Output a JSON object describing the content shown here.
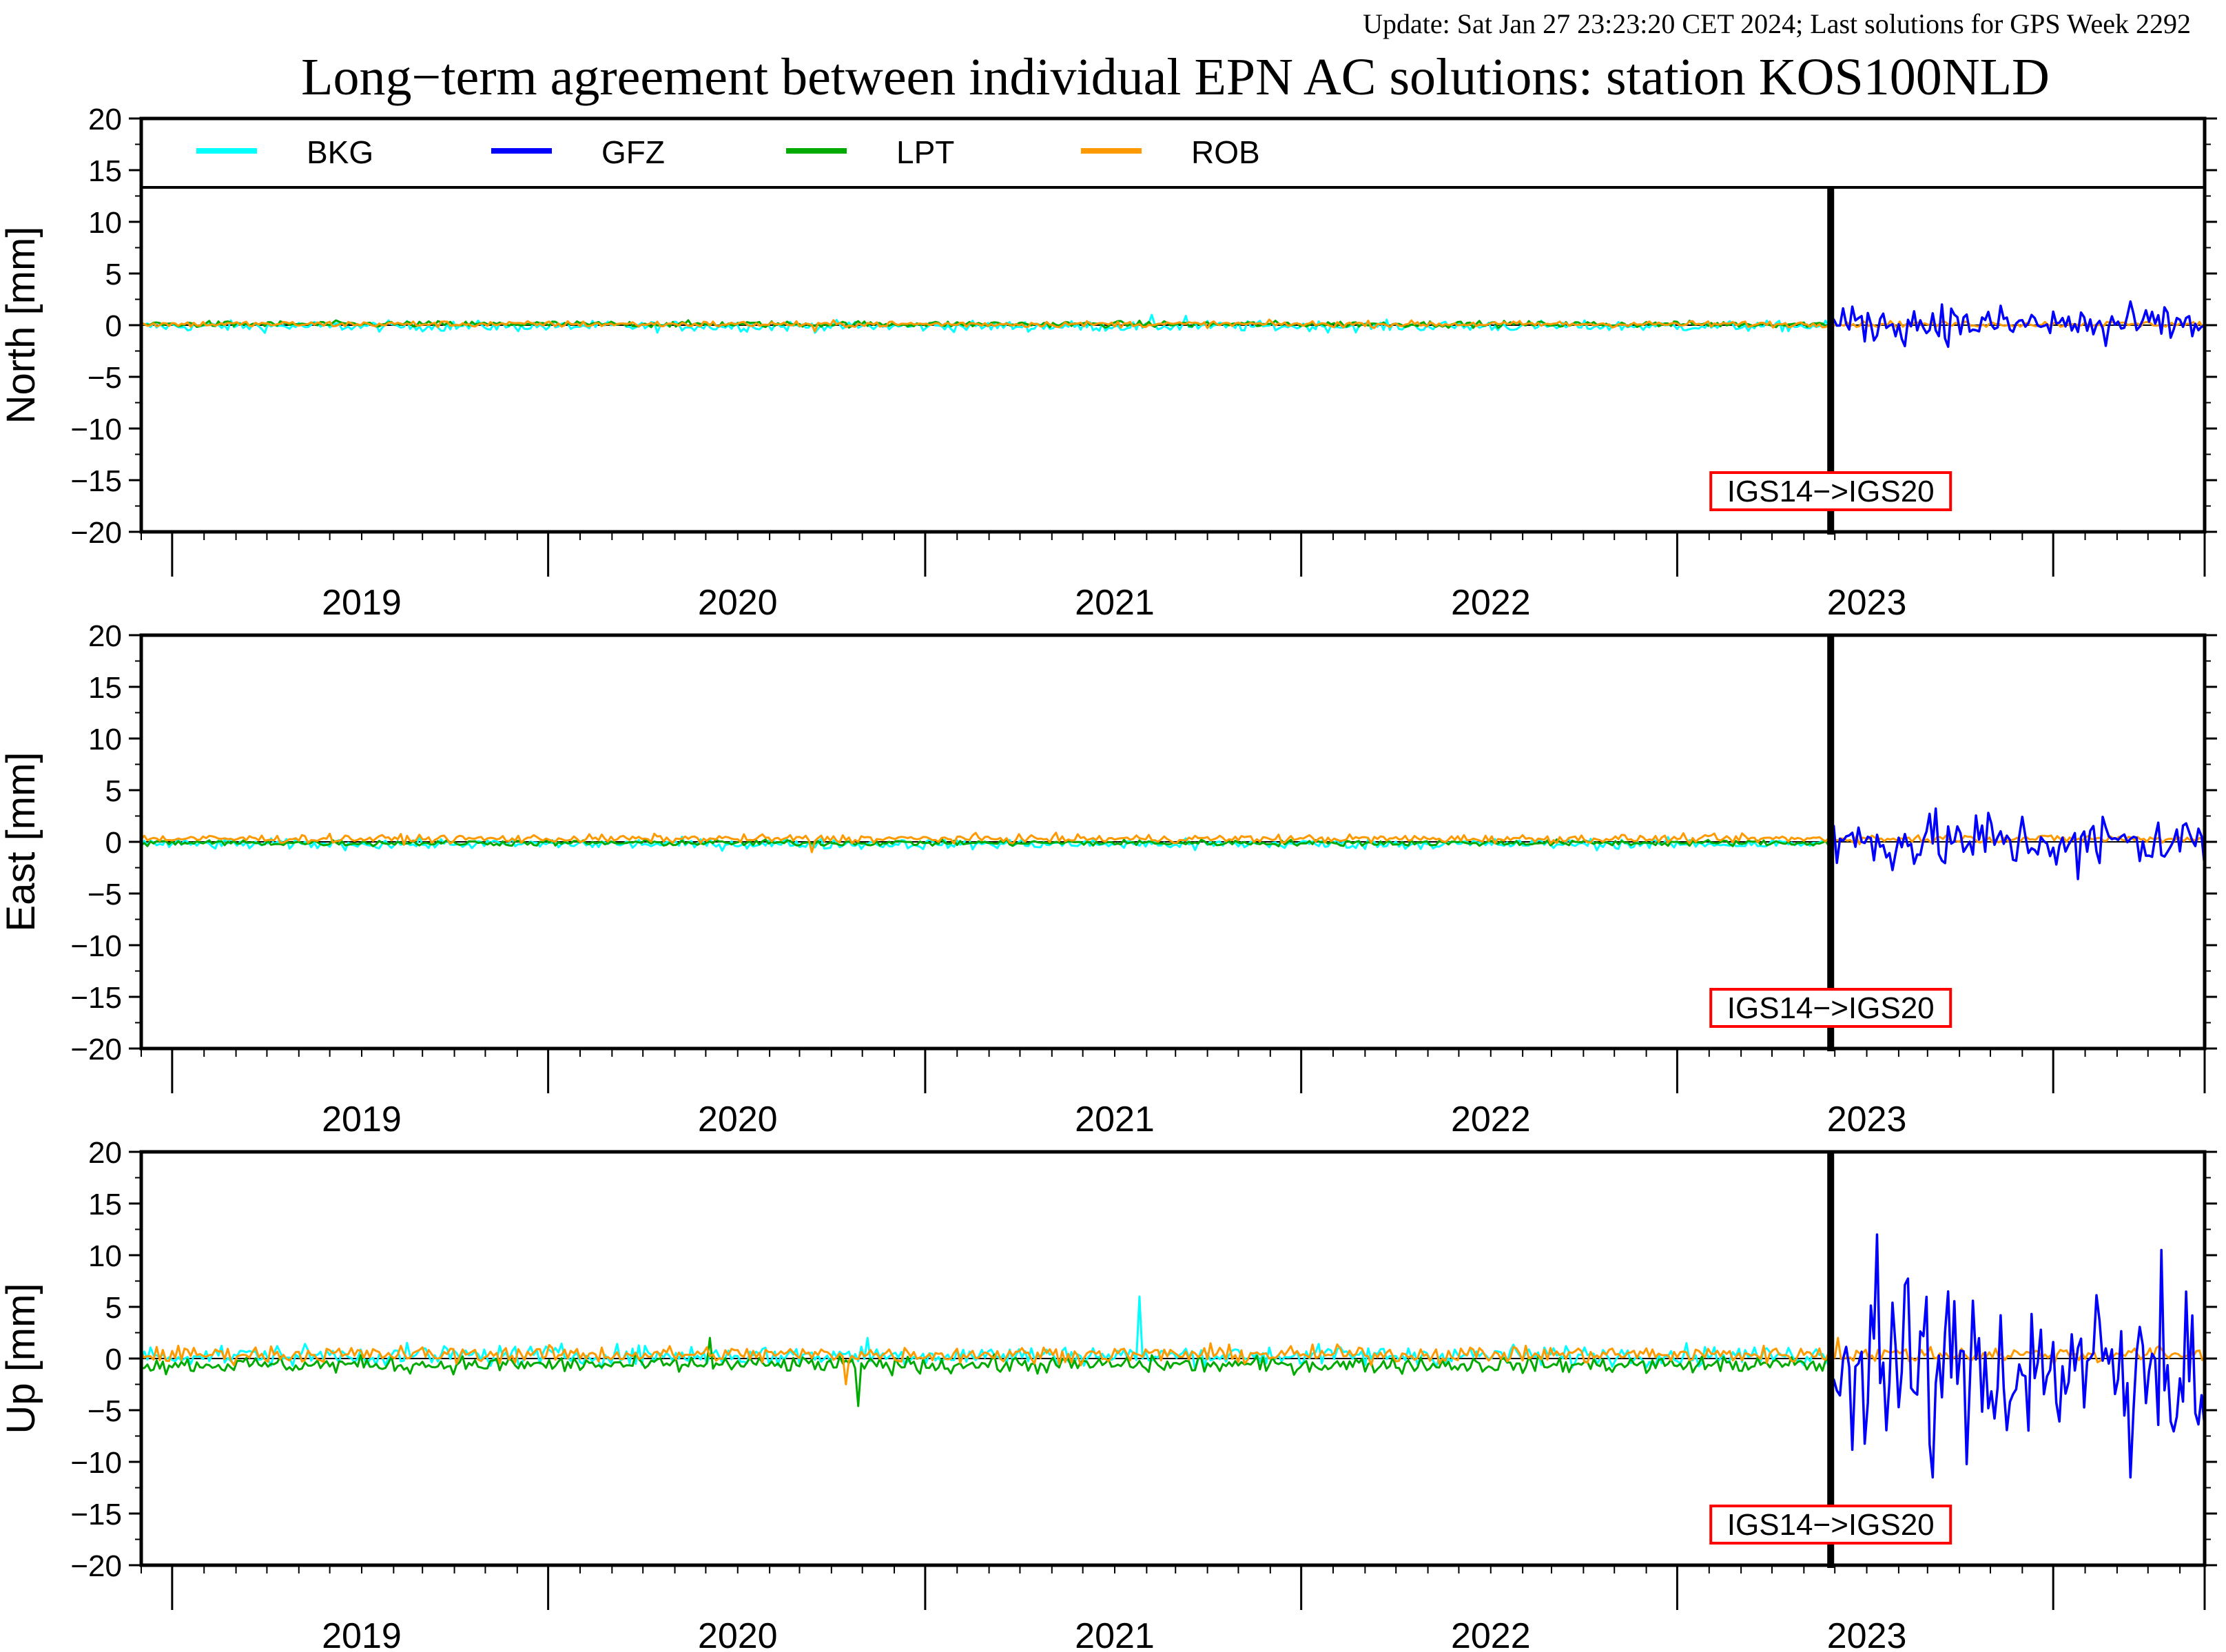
{
  "update_text": "Update: Sat Jan 27 23:23:20 CET 2024; Last solutions for GPS Week 2292",
  "colors": {
    "update_text": "#8b1a1a",
    "BKG": "#00ffff",
    "GFZ": "#0000ff",
    "LPT": "#00aa00",
    "ROB": "#ff9900",
    "annotation_box": "#ff0000"
  },
  "chart_data": {
    "type": "line",
    "title": "Long−term agreement between individual EPN AC solutions: station KOS100NLD",
    "legend": {
      "placement": "top, inside first panel",
      "entries": [
        "BKG",
        "GFZ",
        "LPT",
        "ROB"
      ]
    },
    "x_axis": {
      "type": "date",
      "range": [
        "2018-06-01",
        "2023-11-25"
      ],
      "major_ticks": [
        "2018-07-01",
        "2019-07-01",
        "2020-07-01",
        "2021-07-01",
        "2022-07-01",
        "2023-07-01"
      ],
      "year_labels": [
        {
          "label": "2019",
          "center": "2019-01-01"
        },
        {
          "label": "2020",
          "center": "2020-01-01"
        },
        {
          "label": "2021",
          "center": "2021-01-01"
        },
        {
          "label": "2022",
          "center": "2022-01-01"
        },
        {
          "label": "2023",
          "center": "2023-01-01"
        }
      ]
    },
    "y_range": [
      -20,
      20
    ],
    "y_ticks": [
      "20",
      "15",
      "10",
      "5",
      "0",
      "−5",
      "−10",
      "−15",
      "−20"
    ],
    "annotation": {
      "label": "IGS14−>IGS20",
      "date": "2022-11-27"
    },
    "panels": [
      {
        "ylabel": "North [mm]",
        "series": [
          {
            "name": "BKG",
            "noise": 0.25,
            "bias": -0.1,
            "segments": [
              {
                "from": "2018-06-01",
                "to": "2022-11-27"
              }
            ],
            "spikes": [
              {
                "date": "2021-02-05",
                "value": 1.0
              },
              {
                "date": "2021-03-10",
                "value": 0.9
              }
            ]
          },
          {
            "name": "LPT",
            "noise": 0.15,
            "bias": 0.1,
            "segments": [
              {
                "from": "2018-06-01",
                "to": "2022-11-27"
              }
            ],
            "spikes": []
          },
          {
            "name": "ROB",
            "noise": 0.15,
            "bias": 0.1,
            "segments": [
              {
                "from": "2018-06-01",
                "to": "2023-11-25"
              }
            ],
            "spikes": [
              {
                "date": "2020-03-15",
                "value": -0.6
              }
            ]
          },
          {
            "name": "GFZ",
            "noise": 0.9,
            "bias": 0.1,
            "segments": [
              {
                "from": "2022-11-27",
                "to": "2023-11-25"
              }
            ],
            "spikes": [
              {
                "date": "2023-03-15",
                "value": 2.0
              },
              {
                "date": "2023-08-20",
                "value": -2.0
              }
            ]
          }
        ]
      },
      {
        "ylabel": "East [mm]",
        "series": [
          {
            "name": "BKG",
            "noise": 0.25,
            "bias": -0.2,
            "segments": [
              {
                "from": "2018-06-01",
                "to": "2022-11-27"
              }
            ],
            "spikes": [
              {
                "date": "2021-03-20",
                "value": -0.8
              }
            ]
          },
          {
            "name": "LPT",
            "noise": 0.15,
            "bias": -0.1,
            "segments": [
              {
                "from": "2018-06-01",
                "to": "2022-11-27"
              }
            ],
            "spikes": []
          },
          {
            "name": "ROB",
            "noise": 0.2,
            "bias": 0.3,
            "segments": [
              {
                "from": "2018-06-01",
                "to": "2023-11-25"
              }
            ],
            "spikes": [
              {
                "date": "2020-03-12",
                "value": -1.0
              }
            ]
          },
          {
            "name": "GFZ",
            "noise": 1.4,
            "bias": 0.0,
            "segments": [
              {
                "from": "2022-11-27",
                "to": "2023-11-25"
              }
            ],
            "spikes": [
              {
                "date": "2023-04-30",
                "value": 2.8
              },
              {
                "date": "2023-07-25",
                "value": -3.6
              }
            ]
          }
        ]
      },
      {
        "ylabel": "Up [mm]",
        "series": [
          {
            "name": "BKG",
            "noise": 0.5,
            "bias": 0.3,
            "segments": [
              {
                "from": "2018-06-01",
                "to": "2022-11-27"
              }
            ],
            "spikes": [
              {
                "date": "2021-01-25",
                "value": 6.0
              },
              {
                "date": "2020-05-05",
                "value": 2.0
              }
            ]
          },
          {
            "name": "LPT",
            "noise": 0.4,
            "bias": -0.6,
            "segments": [
              {
                "from": "2018-06-01",
                "to": "2022-11-27"
              }
            ],
            "spikes": [
              {
                "date": "2020-04-28",
                "value": -4.6
              },
              {
                "date": "2019-12-05",
                "value": 2.0
              }
            ]
          },
          {
            "name": "ROB",
            "noise": 0.4,
            "bias": 0.4,
            "segments": [
              {
                "from": "2018-06-01",
                "to": "2023-11-25"
              }
            ],
            "spikes": [
              {
                "date": "2020-04-15",
                "value": -2.5
              },
              {
                "date": "2022-12-05",
                "value": 2.0
              }
            ]
          },
          {
            "name": "GFZ",
            "noise": 4.0,
            "bias": -1.0,
            "segments": [
              {
                "from": "2022-11-27",
                "to": "2023-11-25"
              }
            ],
            "spikes": [
              {
                "date": "2023-01-12",
                "value": 12.0
              },
              {
                "date": "2023-03-05",
                "value": -11.5
              },
              {
                "date": "2023-09-15",
                "value": -11.5
              },
              {
                "date": "2023-10-15",
                "value": 10.5
              }
            ]
          }
        ]
      }
    ]
  }
}
